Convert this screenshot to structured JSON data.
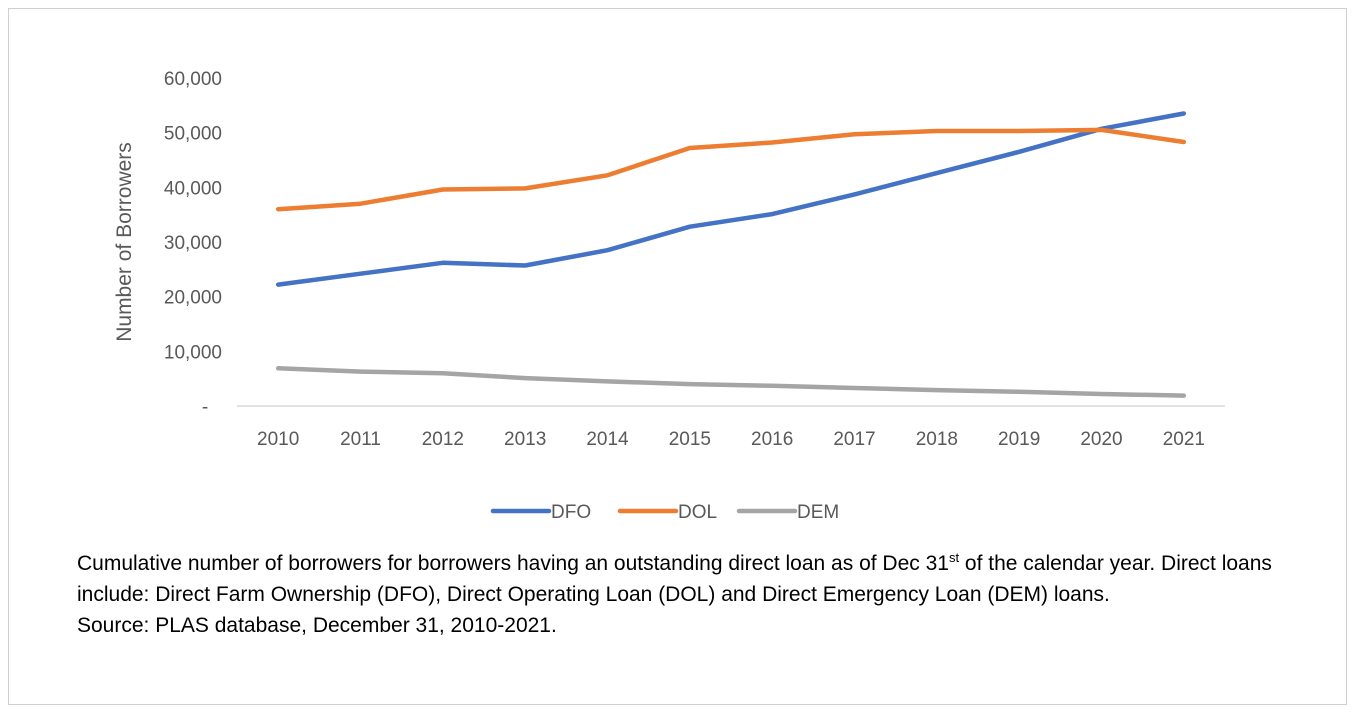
{
  "chart_data": {
    "type": "line",
    "title": "",
    "xlabel": "",
    "ylabel": "Number of Borrowers",
    "categories": [
      "2010",
      "2011",
      "2012",
      "2013",
      "2014",
      "2015",
      "2016",
      "2017",
      "2018",
      "2019",
      "2020",
      "2021"
    ],
    "ylim": [
      0,
      60000
    ],
    "y_ticks": [
      0,
      10000,
      20000,
      30000,
      40000,
      50000,
      60000
    ],
    "y_tick_labels": [
      "-",
      "10,000",
      "20,000",
      "30,000",
      "40,000",
      "50,000",
      "60,000"
    ],
    "gridlines": false,
    "legend_position": "bottom",
    "series": [
      {
        "name": "DFO",
        "color": "#4472C4",
        "values": [
          22200,
          24200,
          26200,
          25700,
          28500,
          32800,
          35100,
          38700,
          42600,
          46500,
          50700,
          53500
        ]
      },
      {
        "name": "DOL",
        "color": "#ED7D31",
        "values": [
          36000,
          37000,
          39600,
          39800,
          42200,
          47200,
          48200,
          49700,
          50300,
          50300,
          50500,
          48300
        ]
      },
      {
        "name": "DEM",
        "color": "#A5A5A5",
        "values": [
          6900,
          6300,
          6000,
          5100,
          4500,
          4000,
          3700,
          3300,
          2900,
          2600,
          2200,
          1900
        ]
      }
    ]
  },
  "caption": {
    "line1_before_sup": "Cumulative number of borrowers for borrowers having an outstanding direct loan as of Dec 31",
    "line1_sup": "st",
    "line1_after_sup": " of the calendar year.  Direct loans include:  Direct Farm Ownership (DFO), Direct Operating Loan (DOL) and Direct Emergency Loan (DEM) loans.",
    "source": "Source:  PLAS database, December 31,  2010-2021."
  }
}
